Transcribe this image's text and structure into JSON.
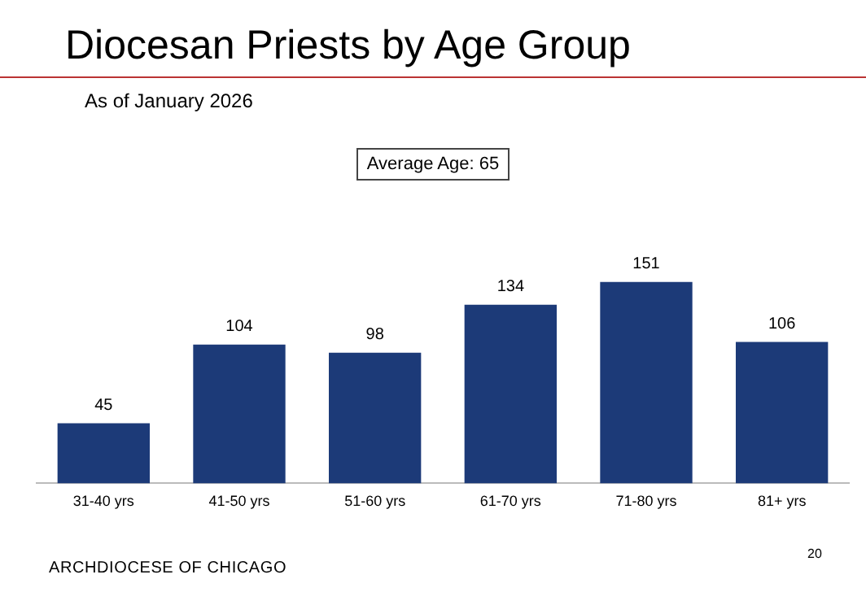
{
  "chart_data": {
    "type": "bar",
    "title": "Diocesan Priests by Age Group",
    "subtitle": "As of January 2026",
    "categories": [
      "31-40 yrs",
      "41-50 yrs",
      "51-60 yrs",
      "61-70 yrs",
      "71-80 yrs",
      "81+ yrs"
    ],
    "values": [
      45,
      104,
      98,
      134,
      151,
      106
    ],
    "color": "#1c3a78",
    "data_labels": true,
    "annotations": [
      "Average Age: 65",
      "ARCHDIOCESE OF CHICAGO",
      "20"
    ]
  }
}
